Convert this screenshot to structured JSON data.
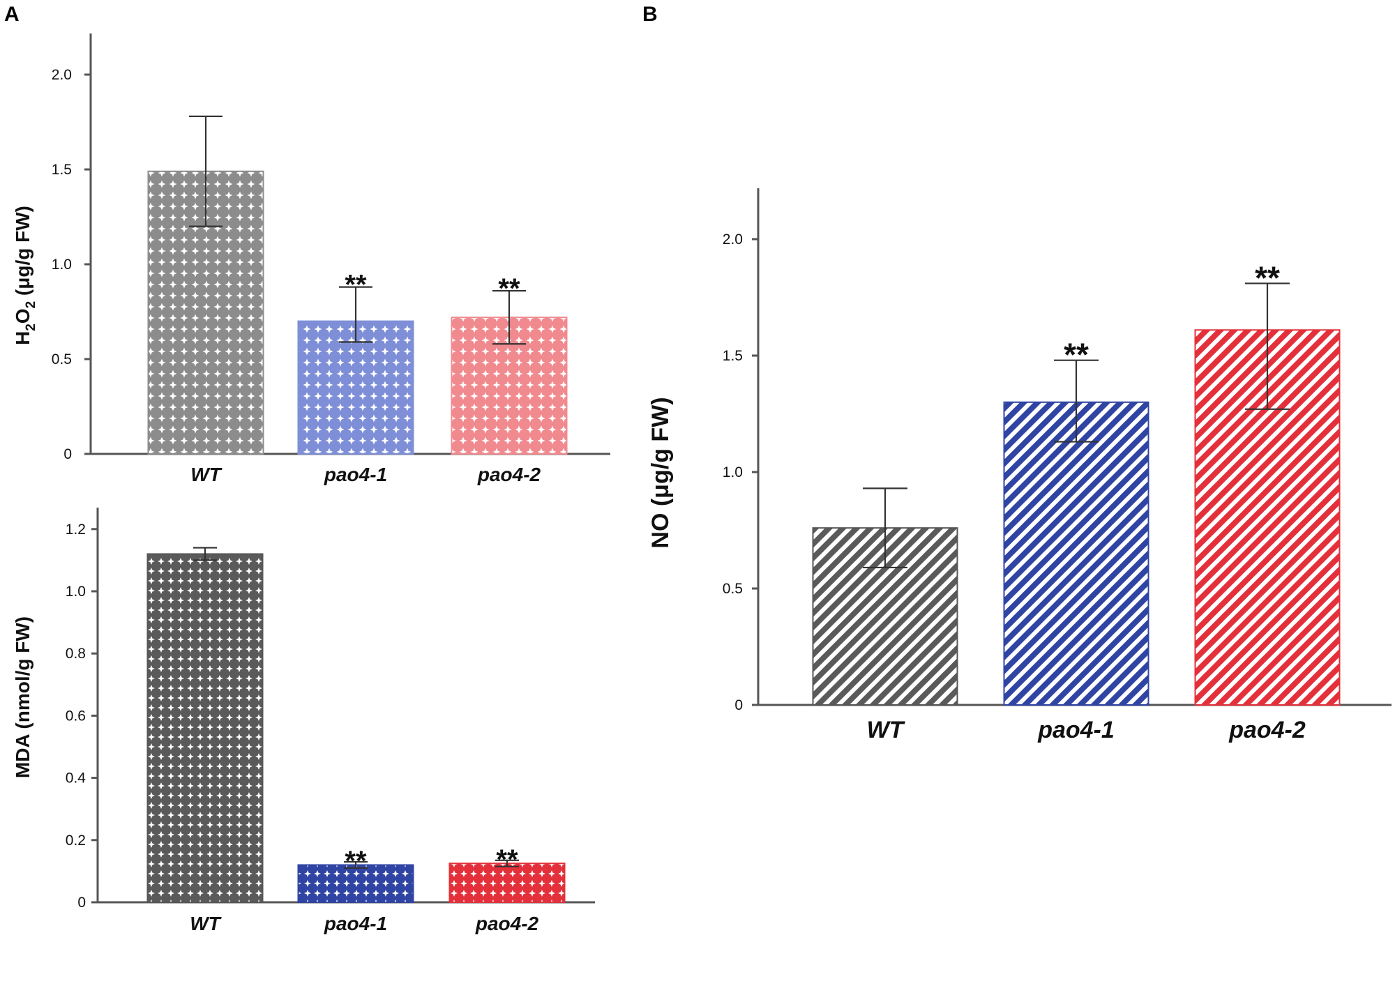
{
  "panels": {
    "a_label": "A",
    "b_label": "B"
  },
  "colors": {
    "wt": "#5a5a5a",
    "pao4_1": "#2f44a3",
    "pao4_2": "#e3303a",
    "wt_light": "#8c8c8c",
    "pao4_1_light": "#7e8fd8",
    "pao4_2_light": "#f08a8f"
  },
  "chart_data": [
    {
      "id": "h2o2",
      "panel": "A",
      "type": "bar",
      "title": "",
      "xlabel": "",
      "ylabel": "H2O2 (μg/g FW)",
      "ylabel_parts": {
        "pre": "H",
        "sub1": "2",
        "mid": "O",
        "sub2": "2",
        "post": " (μg/g FW)"
      },
      "ylim": [
        0,
        2.2
      ],
      "yticks": [
        0,
        0.5,
        1.0,
        1.5,
        2.0
      ],
      "ytick_labels": [
        "0",
        "0.5",
        "1.0",
        "1.5",
        "2.0"
      ],
      "categories": [
        "WT",
        "pao4-1",
        "pao4-2"
      ],
      "values": [
        1.49,
        0.7,
        0.72
      ],
      "err_low": [
        1.2,
        0.59,
        0.58
      ],
      "err_high": [
        1.78,
        0.88,
        0.86
      ],
      "significance": [
        "",
        "**",
        "**"
      ],
      "pattern": "diamond-light"
    },
    {
      "id": "mda",
      "panel": "A",
      "type": "bar",
      "title": "",
      "xlabel": "",
      "ylabel": "MDA (nmol/g FW)",
      "ylim": [
        0,
        1.25
      ],
      "yticks": [
        0,
        0.2,
        0.4,
        0.6,
        0.8,
        1.0,
        1.2
      ],
      "ytick_labels": [
        "0",
        "0.2",
        "0.4",
        "0.6",
        "0.8",
        "1.0",
        "1.2"
      ],
      "categories": [
        "WT",
        "pao4-1",
        "pao4-2"
      ],
      "values": [
        1.12,
        0.12,
        0.125
      ],
      "err_low": [
        1.1,
        0.11,
        0.115
      ],
      "err_high": [
        1.14,
        0.13,
        0.135
      ],
      "significance": [
        "",
        "**",
        "**"
      ],
      "pattern": "diamond-dark"
    },
    {
      "id": "no",
      "panel": "B",
      "type": "bar",
      "title": "",
      "xlabel": "",
      "ylabel": "NO (μg/g FW)",
      "ylim": [
        0,
        2.22
      ],
      "yticks": [
        0,
        0.5,
        1.0,
        1.5,
        2.0
      ],
      "ytick_labels": [
        "0",
        "0.5",
        "1.0",
        "1.5",
        "2.0"
      ],
      "categories": [
        "WT",
        "pao4-1",
        "pao4-2"
      ],
      "values": [
        0.76,
        1.3,
        1.61
      ],
      "err_low": [
        0.59,
        1.13,
        1.27
      ],
      "err_high": [
        0.93,
        1.48,
        1.81
      ],
      "significance": [
        "",
        "**",
        "**"
      ],
      "pattern": "diagonal"
    }
  ]
}
